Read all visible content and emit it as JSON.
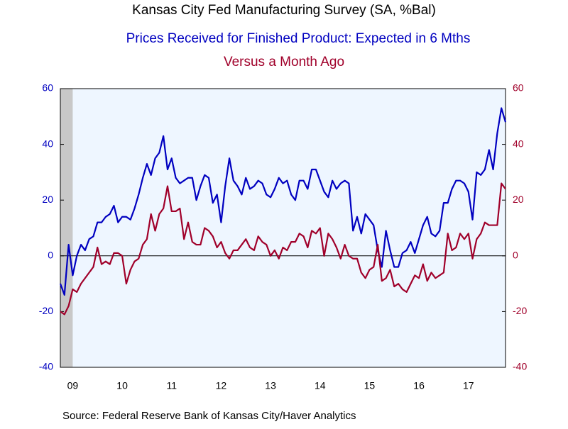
{
  "chart_data": {
    "type": "line",
    "title": "Kansas City Fed Manufacturing Survey (SA, %Bal)",
    "subtitle": "Prices Received for Finished Product: Expected in 6 Mths",
    "subtitle2": "Versus a Month Ago",
    "source": "Source:  Federal Reserve Bank of Kansas City/Haver Analytics",
    "x": [
      2009.25,
      2009.333,
      2009.417,
      2009.5,
      2009.583,
      2009.667,
      2009.75,
      2009.833,
      2009.917,
      2010.0,
      2010.083,
      2010.167,
      2010.25,
      2010.333,
      2010.417,
      2010.5,
      2010.583,
      2010.667,
      2010.75,
      2010.833,
      2010.917,
      2011.0,
      2011.083,
      2011.167,
      2011.25,
      2011.333,
      2011.417,
      2011.5,
      2011.583,
      2011.667,
      2011.75,
      2011.833,
      2011.917,
      2012.0,
      2012.083,
      2012.167,
      2012.25,
      2012.333,
      2012.417,
      2012.5,
      2012.583,
      2012.667,
      2012.75,
      2012.833,
      2012.917,
      2013.0,
      2013.083,
      2013.167,
      2013.25,
      2013.333,
      2013.417,
      2013.5,
      2013.583,
      2013.667,
      2013.75,
      2013.833,
      2013.917,
      2014.0,
      2014.083,
      2014.167,
      2014.25,
      2014.333,
      2014.417,
      2014.5,
      2014.583,
      2014.667,
      2014.75,
      2014.833,
      2014.917,
      2015.0,
      2015.083,
      2015.167,
      2015.25,
      2015.333,
      2015.417,
      2015.5,
      2015.583,
      2015.667,
      2015.75,
      2015.833,
      2015.917,
      2016.0,
      2016.083,
      2016.167,
      2016.25,
      2016.333,
      2016.417,
      2016.5,
      2016.583,
      2016.667,
      2016.75,
      2016.833,
      2016.917,
      2017.0,
      2017.083,
      2017.167,
      2017.25,
      2017.333,
      2017.417,
      2017.5,
      2017.583,
      2017.667,
      2017.75,
      2017.833,
      2017.917,
      2018.0,
      2018.083,
      2018.167,
      2018.25
    ],
    "series": [
      {
        "name": "Prices Received for Finished Product: Expected in 6 Mths",
        "color": "#0000c0",
        "axis": "y",
        "values": [
          -10,
          -14,
          4,
          -7,
          0,
          4,
          2,
          6,
          7,
          12,
          12,
          14,
          15,
          18,
          12,
          14,
          14,
          13,
          17,
          22,
          28,
          33,
          29,
          35,
          37,
          43,
          31,
          35,
          28,
          26,
          27,
          28,
          28,
          20,
          25,
          29,
          28,
          19,
          22,
          12,
          25,
          35,
          27,
          25,
          22,
          28,
          24,
          25,
          27,
          26,
          22,
          21,
          24,
          28,
          26,
          27,
          22,
          20,
          27,
          27,
          24,
          31,
          31,
          27,
          23,
          21,
          27,
          24,
          26,
          27,
          26,
          9,
          14,
          8,
          15,
          13,
          11,
          2,
          -4,
          9,
          2,
          -4,
          -4,
          1,
          2,
          5,
          1,
          6,
          11,
          14,
          8,
          7,
          9,
          19,
          19,
          24,
          27,
          27,
          26,
          23,
          13,
          30,
          29,
          31,
          38,
          31,
          44,
          53,
          48
        ]
      },
      {
        "name": "Versus a Month Ago",
        "color": "#a0002a",
        "axis": "y2",
        "values": [
          -20,
          -21,
          -18,
          -12,
          -13,
          -10,
          -8,
          -6,
          -4,
          3,
          -3,
          -2,
          -3,
          1,
          1,
          0,
          -10,
          -5,
          -2,
          -1,
          4,
          6,
          15,
          9,
          15,
          17,
          25,
          16,
          16,
          17,
          6,
          12,
          5,
          4,
          4,
          10,
          9,
          7,
          3,
          5,
          1,
          -1,
          2,
          2,
          4,
          6,
          3,
          2,
          7,
          5,
          4,
          0,
          2,
          -1,
          3,
          2,
          5,
          5,
          8,
          7,
          3,
          9,
          8,
          10,
          0,
          8,
          6,
          3,
          -1,
          4,
          0,
          -1,
          -1,
          -6,
          -8,
          -5,
          -4,
          4,
          -9,
          -8,
          -5,
          -11,
          -10,
          -12,
          -13,
          -10,
          -7,
          -8,
          -3,
          -9,
          -6,
          -8,
          -7,
          -6,
          8,
          2,
          3,
          8,
          6,
          8,
          -1,
          6,
          8,
          12,
          11,
          11,
          11,
          26,
          24
        ]
      }
    ],
    "xlim": [
      2009.25,
      2018.25
    ],
    "xticks": [
      {
        "value": 2009.5,
        "label": "09"
      },
      {
        "value": 2010.5,
        "label": "10"
      },
      {
        "value": 2011.5,
        "label": "11"
      },
      {
        "value": 2012.5,
        "label": "12"
      },
      {
        "value": 2013.5,
        "label": "13"
      },
      {
        "value": 2014.5,
        "label": "14"
      },
      {
        "value": 2015.5,
        "label": "15"
      },
      {
        "value": 2016.5,
        "label": "16"
      },
      {
        "value": 2017.5,
        "label": "17"
      }
    ],
    "ylim": [
      -40,
      60
    ],
    "yticks": [
      -40,
      -20,
      0,
      20,
      40,
      60
    ],
    "y2lim": [
      -40,
      60
    ],
    "y2ticks": [
      -40,
      -20,
      0,
      20,
      40,
      60
    ],
    "recession": [
      2009.25,
      2009.5
    ],
    "zero_line": true
  }
}
